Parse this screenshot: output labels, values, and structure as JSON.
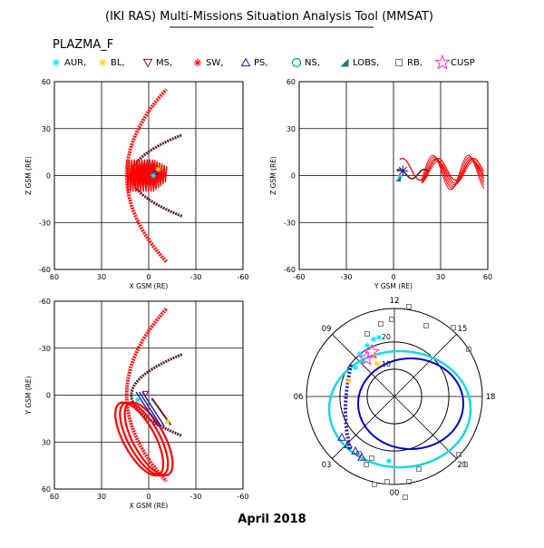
{
  "header": {
    "title": "(IKI RAS) Multi-Missions Situation Analysis Tool (MMSAT)",
    "mission": "PLAZMA_F",
    "footer_date": "April 2018"
  },
  "legend": [
    {
      "label": "AUR,",
      "symbol": "asterisk",
      "color": "#00e5ff"
    },
    {
      "label": "BL,",
      "symbol": "asterisk",
      "color": "#ffd400"
    },
    {
      "label": "MS,",
      "symbol": "triangle-down",
      "color": "#7a1040"
    },
    {
      "label": "SW,",
      "symbol": "asterisk",
      "color": "#ff0000"
    },
    {
      "label": "PS,",
      "symbol": "triangle",
      "color": "#1a1aa6"
    },
    {
      "label": "NS,",
      "symbol": "circle",
      "color": "#00a060"
    },
    {
      "label": "LOBS,",
      "symbol": "lobe-triangle",
      "color": "#207878"
    },
    {
      "label": "RB,",
      "symbol": "square",
      "color": "#707070"
    },
    {
      "label": "CUSP",
      "symbol": "star",
      "color": "#ff2ad4"
    }
  ],
  "colors": {
    "bowshock": "#ff1a1a",
    "magnetopause": "#5a1e28",
    "solar_wind": "#ff0000",
    "auroral_oval_inner": "#0000cc",
    "auroral_oval_outer": "#18d8e0"
  },
  "chart_data": [
    {
      "type": "scatter",
      "id": "xz",
      "xlabel": "X GSM (RE)",
      "ylabel": "Z GSM (RE)",
      "xlim": [
        60,
        -60
      ],
      "ylim": [
        -60,
        60
      ],
      "xticks": [
        "60",
        "30",
        "0",
        "-30",
        "-60"
      ],
      "yticks": [
        "60",
        "30",
        "0",
        "-30",
        "-60"
      ],
      "grid": true
    },
    {
      "type": "scatter",
      "id": "yz",
      "xlabel": "Y GSM (RE)",
      "ylabel": "Z GSM (RE)",
      "xlim": [
        -60,
        60
      ],
      "ylim": [
        -60,
        60
      ],
      "xticks": [
        "-60",
        "-30",
        "0",
        "30",
        "60"
      ],
      "yticks": [
        "60",
        "30",
        "0",
        "-30",
        "-60"
      ],
      "grid": true
    },
    {
      "type": "scatter",
      "id": "xy",
      "xlabel": "X GSM (RE)",
      "ylabel": "Y GSM (RE)",
      "xlim": [
        60,
        -60
      ],
      "ylim": [
        60,
        -60
      ],
      "xticks": [
        "60",
        "30",
        "0",
        "-30",
        "-60"
      ],
      "yticks": [
        "-60",
        "-30",
        "0",
        "30",
        "60"
      ],
      "grid": true
    },
    {
      "type": "polar",
      "id": "mlt",
      "hour_labels": [
        "12",
        "09",
        "06",
        "03",
        "00",
        "21",
        "18",
        "15"
      ],
      "ring_labels": [
        "20",
        "10"
      ],
      "grid": true
    }
  ]
}
